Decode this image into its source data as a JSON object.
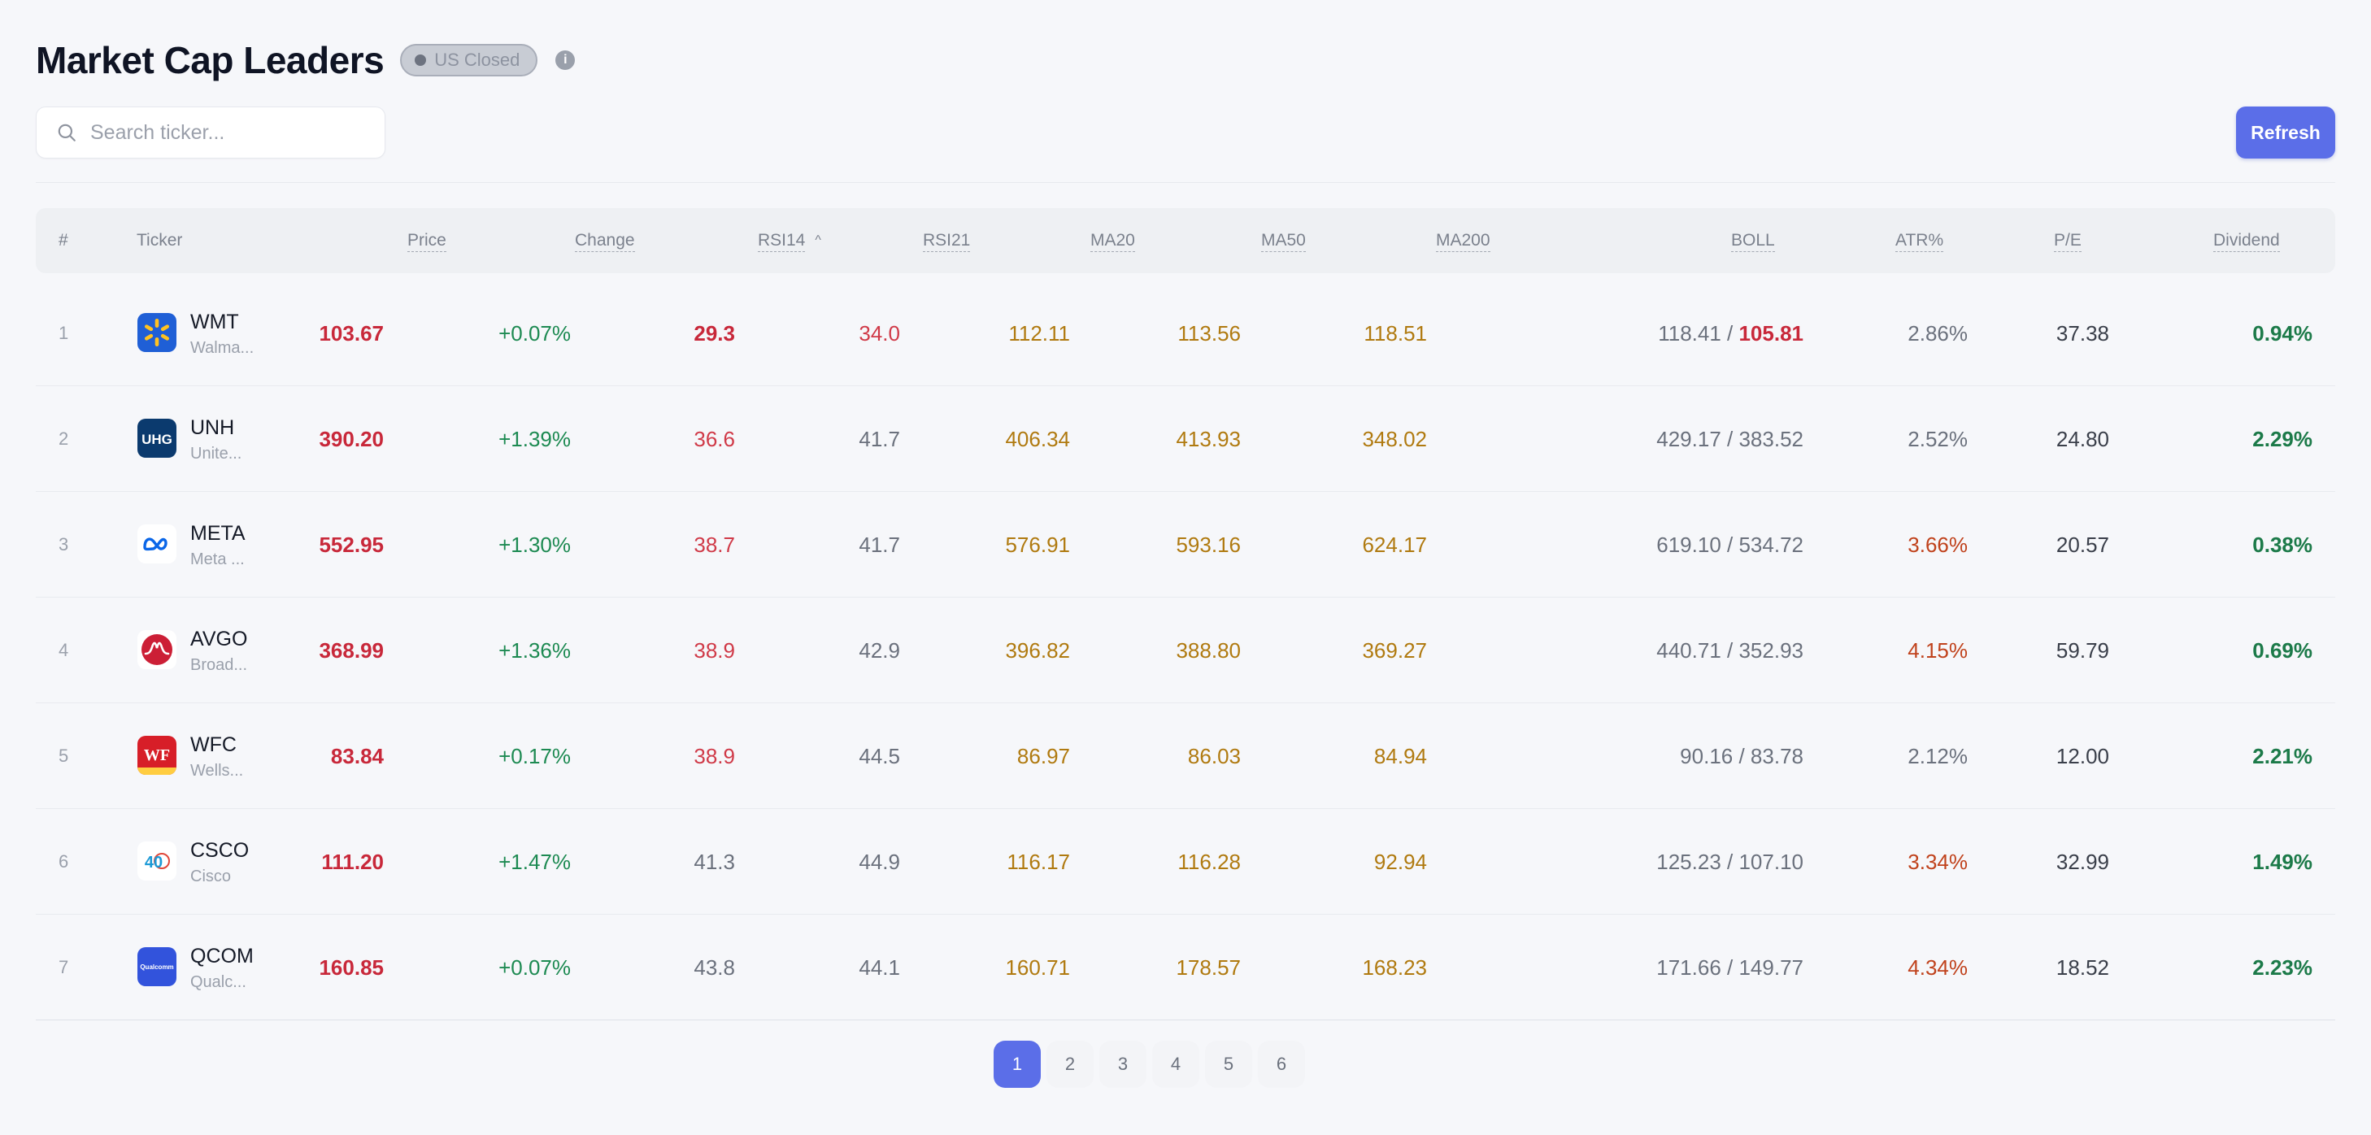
{
  "header": {
    "title": "Market Cap Leaders",
    "status": "US Closed",
    "info_icon": "i"
  },
  "search": {
    "placeholder": "Search ticker..."
  },
  "toolbar": {
    "refresh_label": "Refresh"
  },
  "colors": {
    "accent": "#5b6ee8",
    "negative": "#c8283a",
    "positive": "#1d8a52",
    "ma": "#b07a10"
  },
  "table": {
    "columns": {
      "rank": "#",
      "ticker": "Ticker",
      "price": "Price",
      "change": "Change",
      "rsi14": "RSI14",
      "rsi21": "RSI21",
      "ma20": "MA20",
      "ma50": "MA50",
      "ma200": "MA200",
      "boll": "BOLL",
      "atr": "ATR%",
      "pe": "P/E",
      "dividend": "Dividend"
    },
    "sort_icon": "^",
    "rows": [
      {
        "rank": "1",
        "ticker": "WMT",
        "name": "Walma...",
        "price": "103.67",
        "change": "+0.07%",
        "rsi14": "29.3",
        "rsi21": "34.0",
        "ma20": "112.11",
        "ma50": "113.56",
        "ma200": "118.51",
        "boll_upper": "118.41",
        "boll_sep": " / ",
        "boll_lower": "105.81",
        "atr": "2.86%",
        "pe": "37.38",
        "dividend": "0.94%",
        "logo": "walmart-logo"
      },
      {
        "rank": "2",
        "ticker": "UNH",
        "name": "Unite...",
        "price": "390.20",
        "change": "+1.39%",
        "rsi14": "36.6",
        "rsi21": "41.7",
        "ma20": "406.34",
        "ma50": "413.93",
        "ma200": "348.02",
        "boll_upper": "429.17",
        "boll_sep": " / ",
        "boll_lower": "383.52",
        "atr": "2.52%",
        "pe": "24.80",
        "dividend": "2.29%",
        "logo": "uhg-logo",
        "logo_text": "UHG"
      },
      {
        "rank": "3",
        "ticker": "META",
        "name": "Meta ...",
        "price": "552.95",
        "change": "+1.30%",
        "rsi14": "38.7",
        "rsi21": "41.7",
        "ma20": "576.91",
        "ma50": "593.16",
        "ma200": "624.17",
        "boll_upper": "619.10",
        "boll_sep": " / ",
        "boll_lower": "534.72",
        "atr": "3.66%",
        "pe": "20.57",
        "dividend": "0.38%",
        "logo": "meta-logo"
      },
      {
        "rank": "4",
        "ticker": "AVGO",
        "name": "Broad...",
        "price": "368.99",
        "change": "+1.36%",
        "rsi14": "38.9",
        "rsi21": "42.9",
        "ma20": "396.82",
        "ma50": "388.80",
        "ma200": "369.27",
        "boll_upper": "440.71",
        "boll_sep": " / ",
        "boll_lower": "352.93",
        "atr": "4.15%",
        "pe": "59.79",
        "dividend": "0.69%",
        "logo": "broadcom-logo"
      },
      {
        "rank": "5",
        "ticker": "WFC",
        "name": "Wells...",
        "price": "83.84",
        "change": "+0.17%",
        "rsi14": "38.9",
        "rsi21": "44.5",
        "ma20": "86.97",
        "ma50": "86.03",
        "ma200": "84.94",
        "boll_upper": "90.16",
        "boll_sep": " / ",
        "boll_lower": "83.78",
        "atr": "2.12%",
        "pe": "12.00",
        "dividend": "2.21%",
        "logo": "wells-fargo-logo",
        "logo_text": "WF"
      },
      {
        "rank": "6",
        "ticker": "CSCO",
        "name": "Cisco",
        "price": "111.20",
        "change": "+1.47%",
        "rsi14": "41.3",
        "rsi21": "44.9",
        "ma20": "116.17",
        "ma50": "116.28",
        "ma200": "92.94",
        "boll_upper": "125.23",
        "boll_sep": " / ",
        "boll_lower": "107.10",
        "atr": "3.34%",
        "pe": "32.99",
        "dividend": "1.49%",
        "logo": "cisco-logo",
        "logo_text": "40"
      },
      {
        "rank": "7",
        "ticker": "QCOM",
        "name": "Qualc...",
        "price": "160.85",
        "change": "+0.07%",
        "rsi14": "43.8",
        "rsi21": "44.1",
        "ma20": "160.71",
        "ma50": "178.57",
        "ma200": "168.23",
        "boll_upper": "171.66",
        "boll_sep": " / ",
        "boll_lower": "149.77",
        "atr": "4.34%",
        "pe": "18.52",
        "dividend": "2.23%",
        "logo": "qualcomm-logo",
        "logo_text": "Qualcomm"
      }
    ]
  },
  "pagination": {
    "pages": [
      "1",
      "2",
      "3",
      "4",
      "5",
      "6"
    ],
    "current": "1"
  }
}
